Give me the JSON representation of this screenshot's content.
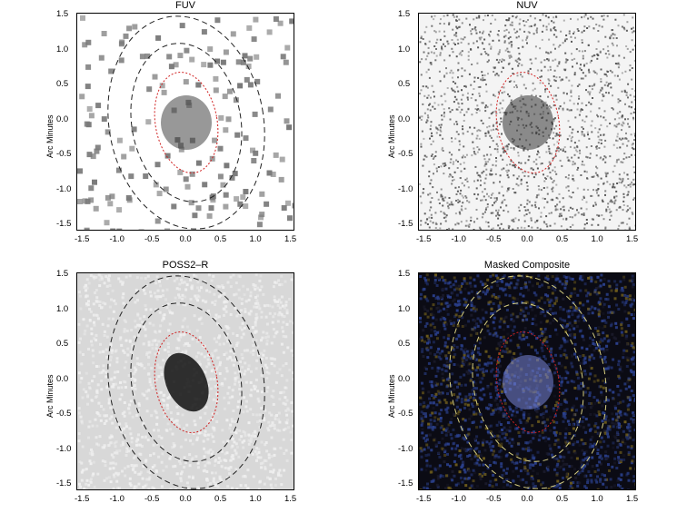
{
  "panels": [
    {
      "id": "fuv",
      "title": "FUV",
      "ylabel": "Arc Minutes",
      "bg": "#ffffff",
      "dots": "#7a7a7a",
      "dark": "#444"
    },
    {
      "id": "nuv",
      "title": "NUV",
      "ylabel": "Arc Minutes",
      "bg": "#f4f4f4",
      "dots": "#555",
      "dark": "#333"
    },
    {
      "id": "poss",
      "title": "POSS2–R",
      "ylabel": "Arc Minutes",
      "bg": "#d8d8d8",
      "dots": "#efefef",
      "dark": "#111"
    },
    {
      "id": "comp",
      "title": "Masked Composite",
      "ylabel": "Arc Minutes",
      "bg": "#0b0b14",
      "dots": "#2b3f86",
      "dark": "#7a86d8"
    }
  ],
  "ticks": {
    "x": [
      "-1.5",
      "-1.0",
      "-0.5",
      "0.0",
      "0.5",
      "1.0",
      "1.5"
    ],
    "y": [
      "1.5",
      "1.0",
      "0.5",
      "0.0",
      "-0.5",
      "-1.0",
      "-1.5"
    ]
  }
}
